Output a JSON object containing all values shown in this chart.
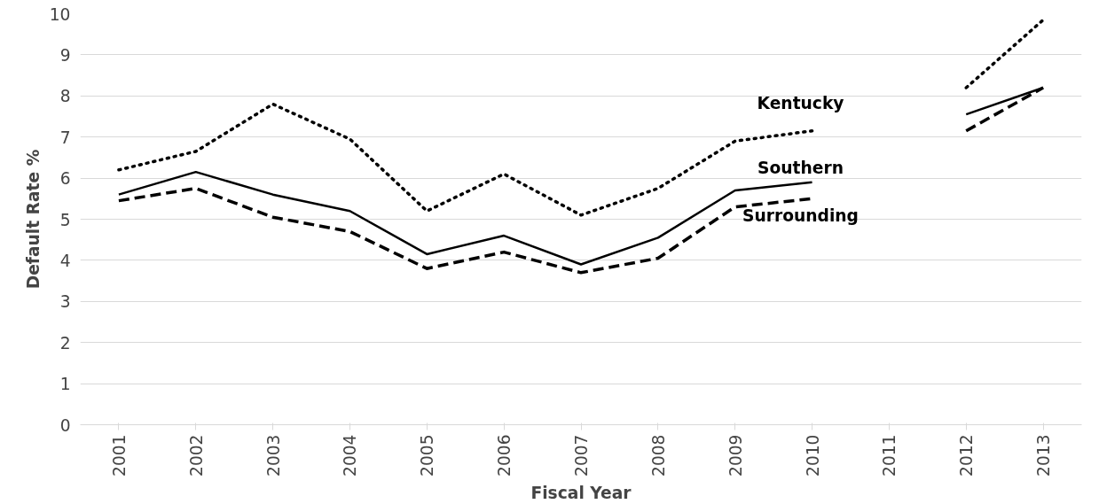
{
  "chart_data": {
    "type": "line",
    "xlabel": "Fiscal Year",
    "ylabel": "Default Rate %",
    "categories": [
      "2001",
      "2002",
      "2003",
      "2004",
      "2005",
      "2006",
      "2007",
      "2008",
      "2009",
      "2010",
      "2011",
      "2012",
      "2013"
    ],
    "series": [
      {
        "name": "Kentucky",
        "color": "#000000",
        "line_style": "dotted",
        "values": [
          6.2,
          6.65,
          7.8,
          6.95,
          5.2,
          6.1,
          5.1,
          5.75,
          6.9,
          7.15,
          null,
          8.2,
          9.85
        ]
      },
      {
        "name": "Southern",
        "color": "#000000",
        "line_style": "solid",
        "values": [
          5.6,
          6.15,
          5.6,
          5.2,
          4.15,
          4.6,
          3.9,
          4.55,
          5.7,
          5.9,
          null,
          7.55,
          8.2
        ]
      },
      {
        "name": "Surrounding",
        "color": "#000000",
        "line_style": "dashed",
        "values": [
          5.45,
          5.75,
          5.05,
          4.7,
          3.8,
          4.2,
          3.7,
          4.05,
          5.3,
          5.5,
          null,
          7.15,
          8.2
        ]
      }
    ],
    "ylim": [
      0,
      10
    ],
    "yticks": [
      0,
      1,
      2,
      3,
      4,
      5,
      6,
      7,
      8,
      9,
      10
    ],
    "grid": "y",
    "marker": "none"
  }
}
